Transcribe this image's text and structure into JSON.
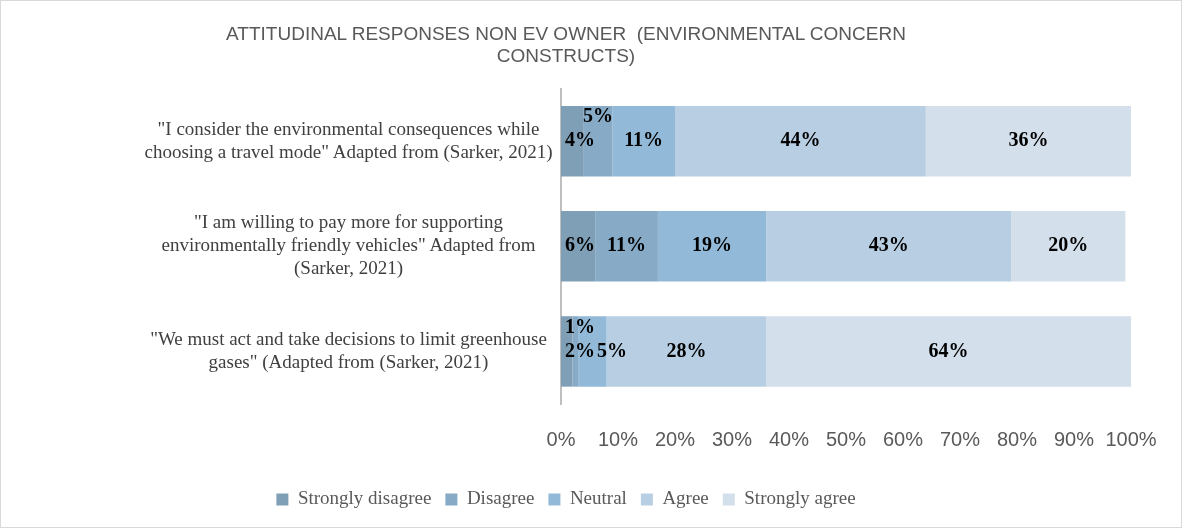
{
  "chart_data": {
    "type": "bar",
    "orientation": "horizontal",
    "stacked": true,
    "title": "ATTITUDINAL RESPONSES NON EV OWNER  (ENVIRONMENTAL CONCERN CONSTRUCTS)",
    "categories": [
      "\"I consider the environmental consequences while choosing a travel mode\" Adapted from (Sarker, 2021)",
      "\"I am willing to pay more for supporting environmentally friendly vehicles\" Adapted from (Sarker, 2021)",
      "\"We must act and take decisions to limit greenhouse gases\" (Adapted from (Sarker, 2021)"
    ],
    "series": [
      {
        "name": "Strongly disagree",
        "color": "#7f9fb6",
        "values": [
          4,
          6,
          2
        ]
      },
      {
        "name": "Disagree",
        "color": "#87aac6",
        "values": [
          5,
          11,
          1
        ]
      },
      {
        "name": "Neutral",
        "color": "#92bad8",
        "values": [
          11,
          19,
          5
        ]
      },
      {
        "name": "Agree",
        "color": "#b8cfe3",
        "values": [
          44,
          43,
          28
        ]
      },
      {
        "name": "Strongly agree",
        "color": "#d3dfea",
        "values": [
          36,
          20,
          64
        ]
      }
    ],
    "xlim": [
      0,
      100
    ],
    "xticks": [
      {
        "value": 0,
        "label": "0%"
      },
      {
        "value": 10,
        "label": "10%"
      },
      {
        "value": 20,
        "label": "20%"
      },
      {
        "value": 30,
        "label": "30%"
      },
      {
        "value": 40,
        "label": "40%"
      },
      {
        "value": 50,
        "label": "50%"
      },
      {
        "value": 60,
        "label": "60%"
      },
      {
        "value": 70,
        "label": "70%"
      },
      {
        "value": 80,
        "label": "80%"
      },
      {
        "value": 90,
        "label": "90%"
      },
      {
        "value": 100,
        "label": "100%"
      }
    ],
    "value_labels": [
      [
        "4%",
        "6%",
        "2%"
      ],
      [
        "5%",
        "11%",
        "1%"
      ],
      [
        "11%",
        "19%",
        "5%"
      ],
      [
        "44%",
        "43%",
        "28%"
      ],
      [
        "36%",
        "20%",
        "64%"
      ]
    ],
    "grid": false,
    "legend": "bottom"
  }
}
